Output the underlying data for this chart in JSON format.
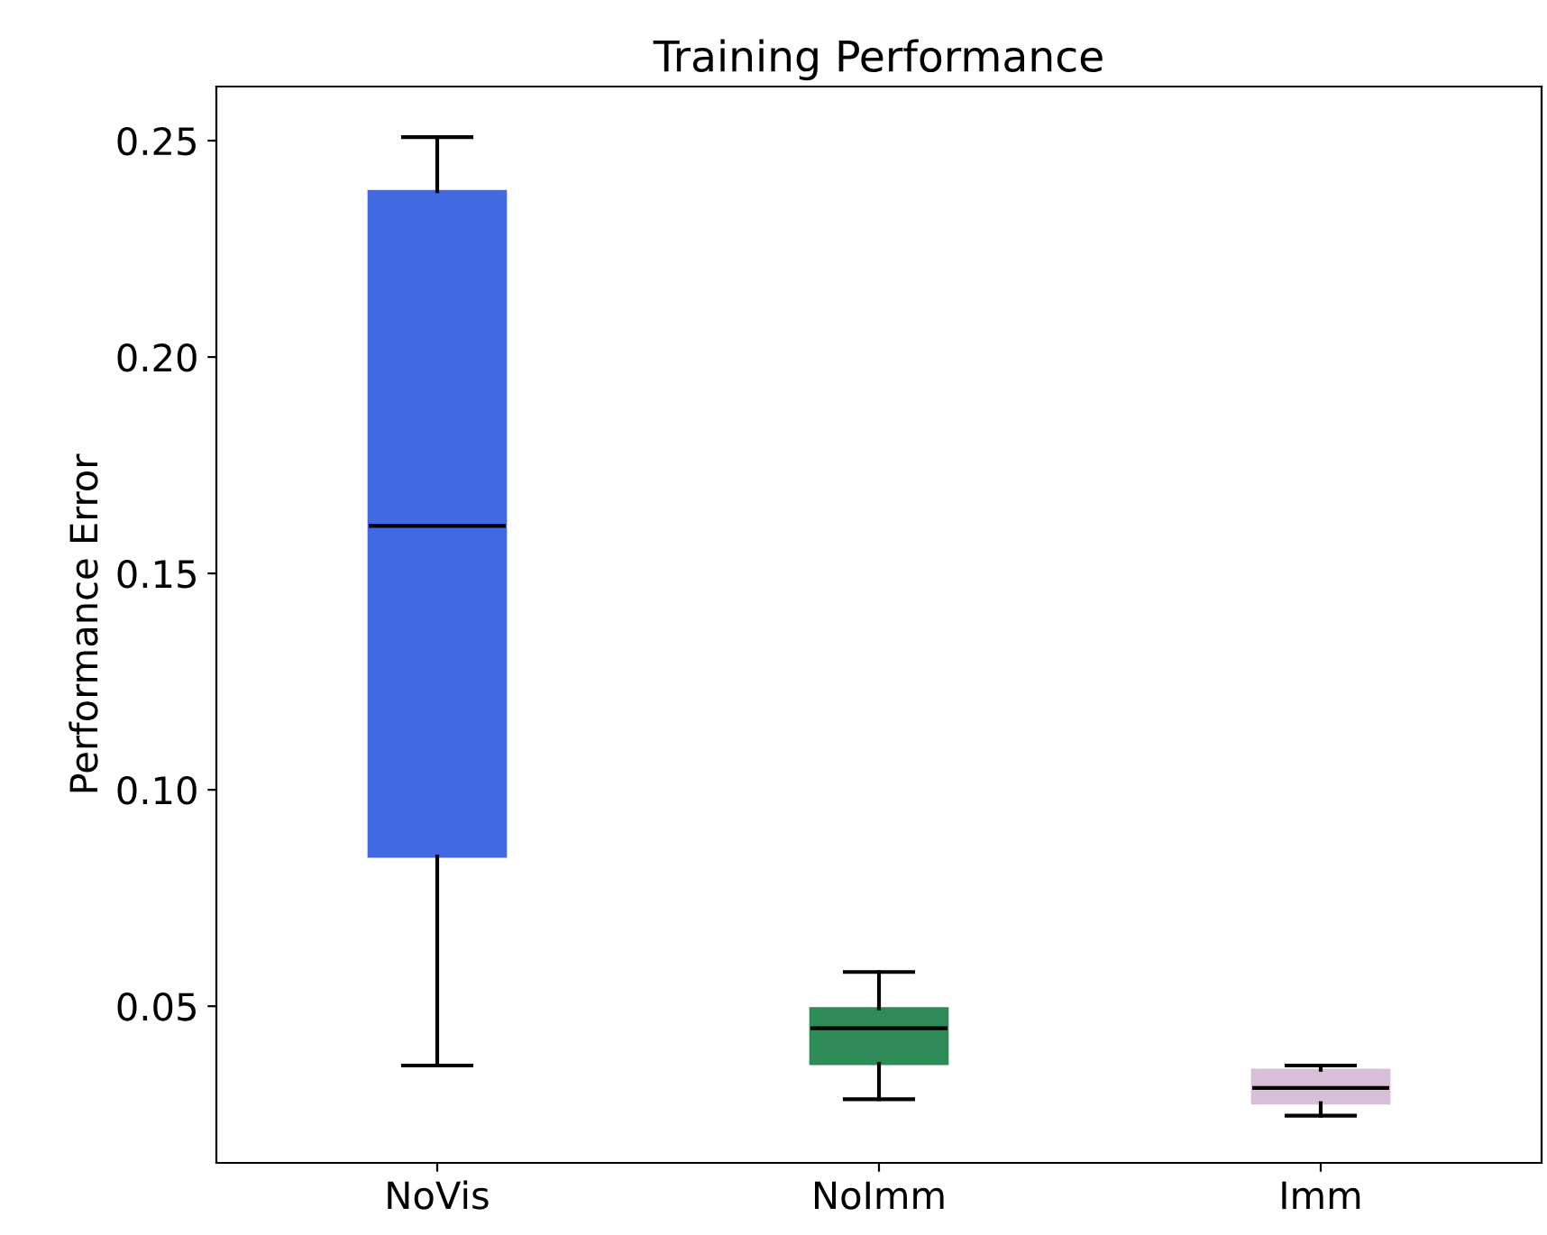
{
  "chart_data": {
    "type": "box",
    "title": "Training Performance",
    "ylabel": "Performance Error",
    "categories": [
      "NoVis",
      "NoImm",
      "Imm"
    ],
    "colors": [
      "#4169e1",
      "#2e8b57",
      "#d8bfd8"
    ],
    "boxes": [
      {
        "low": 0.0363,
        "q1": 0.0846,
        "median": 0.161,
        "q3": 0.2383,
        "high": 0.2508
      },
      {
        "low": 0.0285,
        "q1": 0.0367,
        "median": 0.0449,
        "q3": 0.0495,
        "high": 0.0579
      },
      {
        "low": 0.0247,
        "q1": 0.0276,
        "median": 0.0311,
        "q3": 0.0353,
        "high": 0.0363
      }
    ],
    "ylim": [
      0.0138,
      0.2625
    ],
    "yticks": [
      0.05,
      {
        "value": 0.1,
        "label": "0.10"
      },
      0.15,
      {
        "value": 0.2,
        "label": "0.20"
      },
      0.25
    ],
    "grid": false
  }
}
